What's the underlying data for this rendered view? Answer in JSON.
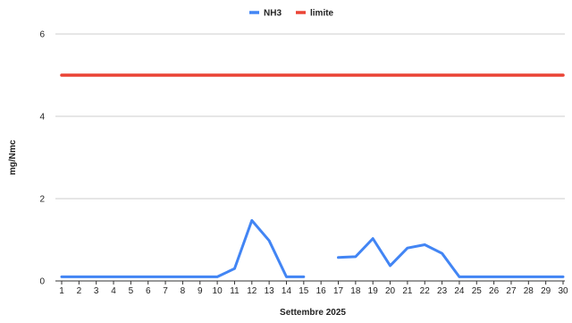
{
  "chart_data": {
    "type": "line",
    "title": "",
    "xlabel": "Settembre 2025",
    "ylabel": "mg/Nmc",
    "x": [
      1,
      2,
      3,
      4,
      5,
      6,
      7,
      8,
      9,
      10,
      11,
      12,
      13,
      14,
      15,
      16,
      17,
      18,
      19,
      20,
      21,
      22,
      23,
      24,
      25,
      26,
      27,
      28,
      29,
      30
    ],
    "xticks": [
      "1",
      "2",
      "3",
      "4",
      "5",
      "6",
      "7",
      "8",
      "9",
      "10",
      "11",
      "12",
      "13",
      "14",
      "15",
      "16",
      "17",
      "18",
      "19",
      "20",
      "21",
      "22",
      "23",
      "24",
      "25",
      "26",
      "27",
      "28",
      "29",
      "30"
    ],
    "ylim": [
      0,
      6
    ],
    "yticks": [
      "0",
      "2",
      "4",
      "6"
    ],
    "grid": true,
    "legend_position": "top",
    "series": [
      {
        "name": "NH3",
        "color": "#4285F4",
        "values": [
          0.1,
          0.1,
          0.1,
          0.1,
          0.1,
          0.1,
          0.1,
          0.1,
          0.1,
          0.1,
          0.3,
          1.47,
          0.98,
          0.1,
          0.1,
          null,
          0.57,
          0.59,
          1.03,
          0.37,
          0.8,
          0.88,
          0.67,
          0.1,
          0.1,
          0.1,
          0.1,
          0.1,
          0.1,
          0.1
        ]
      },
      {
        "name": "limite",
        "color": "#EA4335",
        "values": [
          5,
          5,
          5,
          5,
          5,
          5,
          5,
          5,
          5,
          5,
          5,
          5,
          5,
          5,
          5,
          5,
          5,
          5,
          5,
          5,
          5,
          5,
          5,
          5,
          5,
          5,
          5,
          5,
          5,
          5
        ]
      }
    ]
  }
}
